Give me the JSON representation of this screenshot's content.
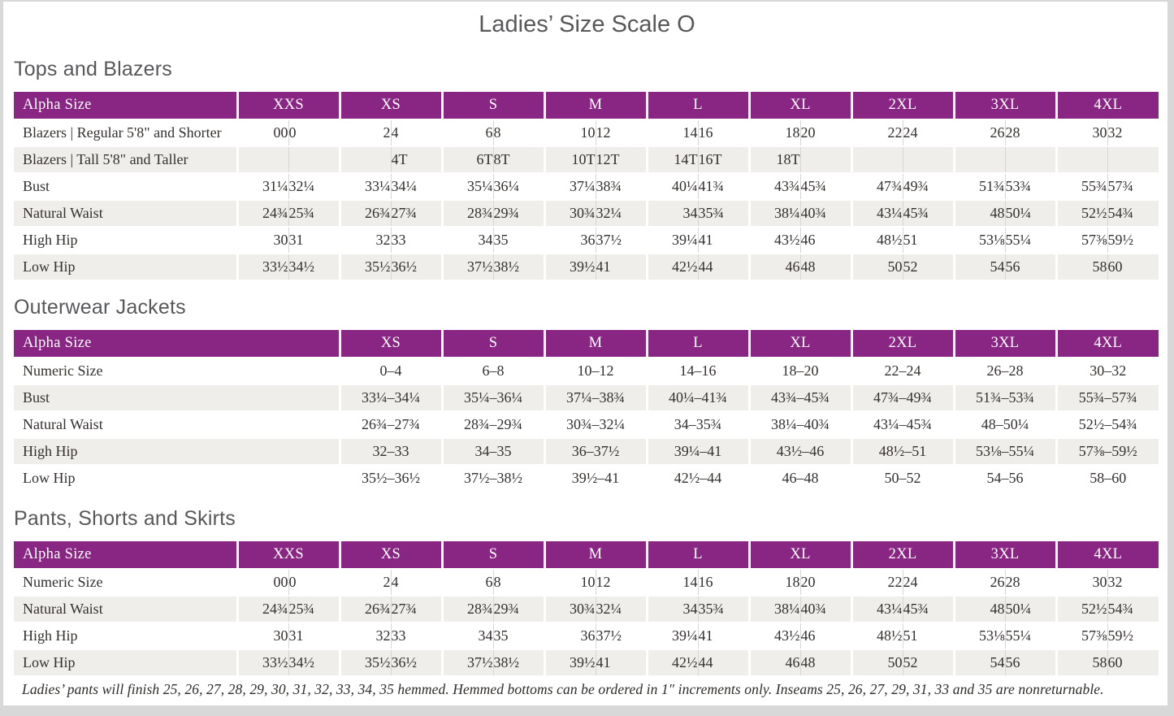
{
  "page": {
    "title": "Ladies’ Size Scale O"
  },
  "colors": {
    "accent": "#892583",
    "stripe": "#f0eeea",
    "page_frame": "#d8d8d8",
    "heading_text": "#57585a",
    "body_text": "#33302e"
  },
  "tables": [
    {
      "heading": "Tops and Blazers",
      "type": "paired",
      "label_header": "Alpha Size",
      "columns": [
        "XXS",
        "XS",
        "S",
        "M",
        "L",
        "XL",
        "2XL",
        "3XL",
        "4XL"
      ],
      "rows": [
        {
          "label": "Blazers | Regular 5'8\" and Shorter",
          "values": [
            "00",
            "0",
            "2",
            "4",
            "6",
            "8",
            "10",
            "12",
            "14",
            "16",
            "18",
            "20",
            "22",
            "24",
            "26",
            "28",
            "30",
            "32"
          ]
        },
        {
          "label": "Blazers | Tall 5'8\" and Taller",
          "values": [
            "",
            "",
            "",
            "4T",
            "6T",
            "8T",
            "10T",
            "12T",
            "14T",
            "16T",
            "18T",
            "",
            "",
            "",
            "",
            "",
            "",
            ""
          ]
        },
        {
          "label": "Bust",
          "values": [
            "31¼",
            "32¼",
            "33¼",
            "34¼",
            "35¼",
            "36¼",
            "37¼",
            "38¾",
            "40¼",
            "41¾",
            "43¾",
            "45¾",
            "47¾",
            "49¾",
            "51¾",
            "53¾",
            "55¾",
            "57¾"
          ]
        },
        {
          "label": "Natural Waist",
          "values": [
            "24¾",
            "25¾",
            "26¾",
            "27¾",
            "28¾",
            "29¾",
            "30¾",
            "32¼",
            "34",
            "35¾",
            "38¼",
            "40¾",
            "43¼",
            "45¾",
            "48",
            "50¼",
            "52½",
            "54¾"
          ]
        },
        {
          "label": "High Hip",
          "values": [
            "30",
            "31",
            "32",
            "33",
            "34",
            "35",
            "36",
            "37½",
            "39¼",
            "41",
            "43½",
            "46",
            "48½",
            "51",
            "53⅛",
            "55¼",
            "57⅜",
            "59½"
          ]
        },
        {
          "label": "Low Hip",
          "values": [
            "33½",
            "34½",
            "35½",
            "36½",
            "37½",
            "38½",
            "39½",
            "41",
            "42½",
            "44",
            "46",
            "48",
            "50",
            "52",
            "54",
            "56",
            "58",
            "60"
          ]
        }
      ]
    },
    {
      "heading": "Outerwear Jackets",
      "type": "single",
      "label_header": "Alpha Size",
      "columns": [
        "XS",
        "S",
        "M",
        "L",
        "XL",
        "2XL",
        "3XL",
        "4XL"
      ],
      "rows": [
        {
          "label": "Numeric Size",
          "values": [
            "0–4",
            "6–8",
            "10–12",
            "14–16",
            "18–20",
            "22–24",
            "26–28",
            "30–32"
          ]
        },
        {
          "label": "Bust",
          "values": [
            "33¼–34¼",
            "35¼–36¼",
            "37¼–38¾",
            "40¼–41¾",
            "43¾–45¾",
            "47¾–49¾",
            "51¾–53¾",
            "55¾–57¾"
          ]
        },
        {
          "label": "Natural Waist",
          "values": [
            "26¾–27¾",
            "28¾–29¾",
            "30¾–32¼",
            "34–35¾",
            "38¼–40¾",
            "43¼–45¾",
            "48–50¼",
            "52½–54¾"
          ]
        },
        {
          "label": "High Hip",
          "values": [
            "32–33",
            "34–35",
            "36–37½",
            "39¼–41",
            "43½–46",
            "48½–51",
            "53⅛–55¼",
            "57⅜–59½"
          ]
        },
        {
          "label": "Low Hip",
          "values": [
            "35½–36½",
            "37½–38½",
            "39½–41",
            "42½–44",
            "46–48",
            "50–52",
            "54–56",
            "58–60"
          ]
        }
      ]
    },
    {
      "heading": "Pants, Shorts and Skirts",
      "type": "paired",
      "label_header": "Alpha Size",
      "columns": [
        "XXS",
        "XS",
        "S",
        "M",
        "L",
        "XL",
        "2XL",
        "3XL",
        "4XL"
      ],
      "rows": [
        {
          "label": "Numeric Size",
          "values": [
            "00",
            "0",
            "2",
            "4",
            "6",
            "8",
            "10",
            "12",
            "14",
            "16",
            "18",
            "20",
            "22",
            "24",
            "26",
            "28",
            "30",
            "32"
          ]
        },
        {
          "label": "Natural Waist",
          "values": [
            "24¾",
            "25¾",
            "26¾",
            "27¾",
            "28¾",
            "29¾",
            "30¾",
            "32¼",
            "34",
            "35¾",
            "38¼",
            "40¾",
            "43¼",
            "45¾",
            "48",
            "50¼",
            "52½",
            "54¾"
          ]
        },
        {
          "label": "High Hip",
          "values": [
            "30",
            "31",
            "32",
            "33",
            "34",
            "35",
            "36",
            "37½",
            "39¼",
            "41",
            "43½",
            "46",
            "48½",
            "51",
            "53⅛",
            "55¼",
            "57⅜",
            "59½"
          ]
        },
        {
          "label": "Low Hip",
          "values": [
            "33½",
            "34½",
            "35½",
            "36½",
            "37½",
            "38½",
            "39½",
            "41",
            "42½",
            "44",
            "46",
            "48",
            "50",
            "52",
            "54",
            "56",
            "58",
            "60"
          ]
        }
      ]
    }
  ],
  "footnote": "Ladies’ pants will finish 25, 26, 27, 28, 29, 30, 31, 32, 33, 34, 35 hemmed. Hemmed bottoms can be ordered in 1″ increments only. Inseams 25, 26, 27, 29, 31, 33 and 35 are nonreturnable."
}
